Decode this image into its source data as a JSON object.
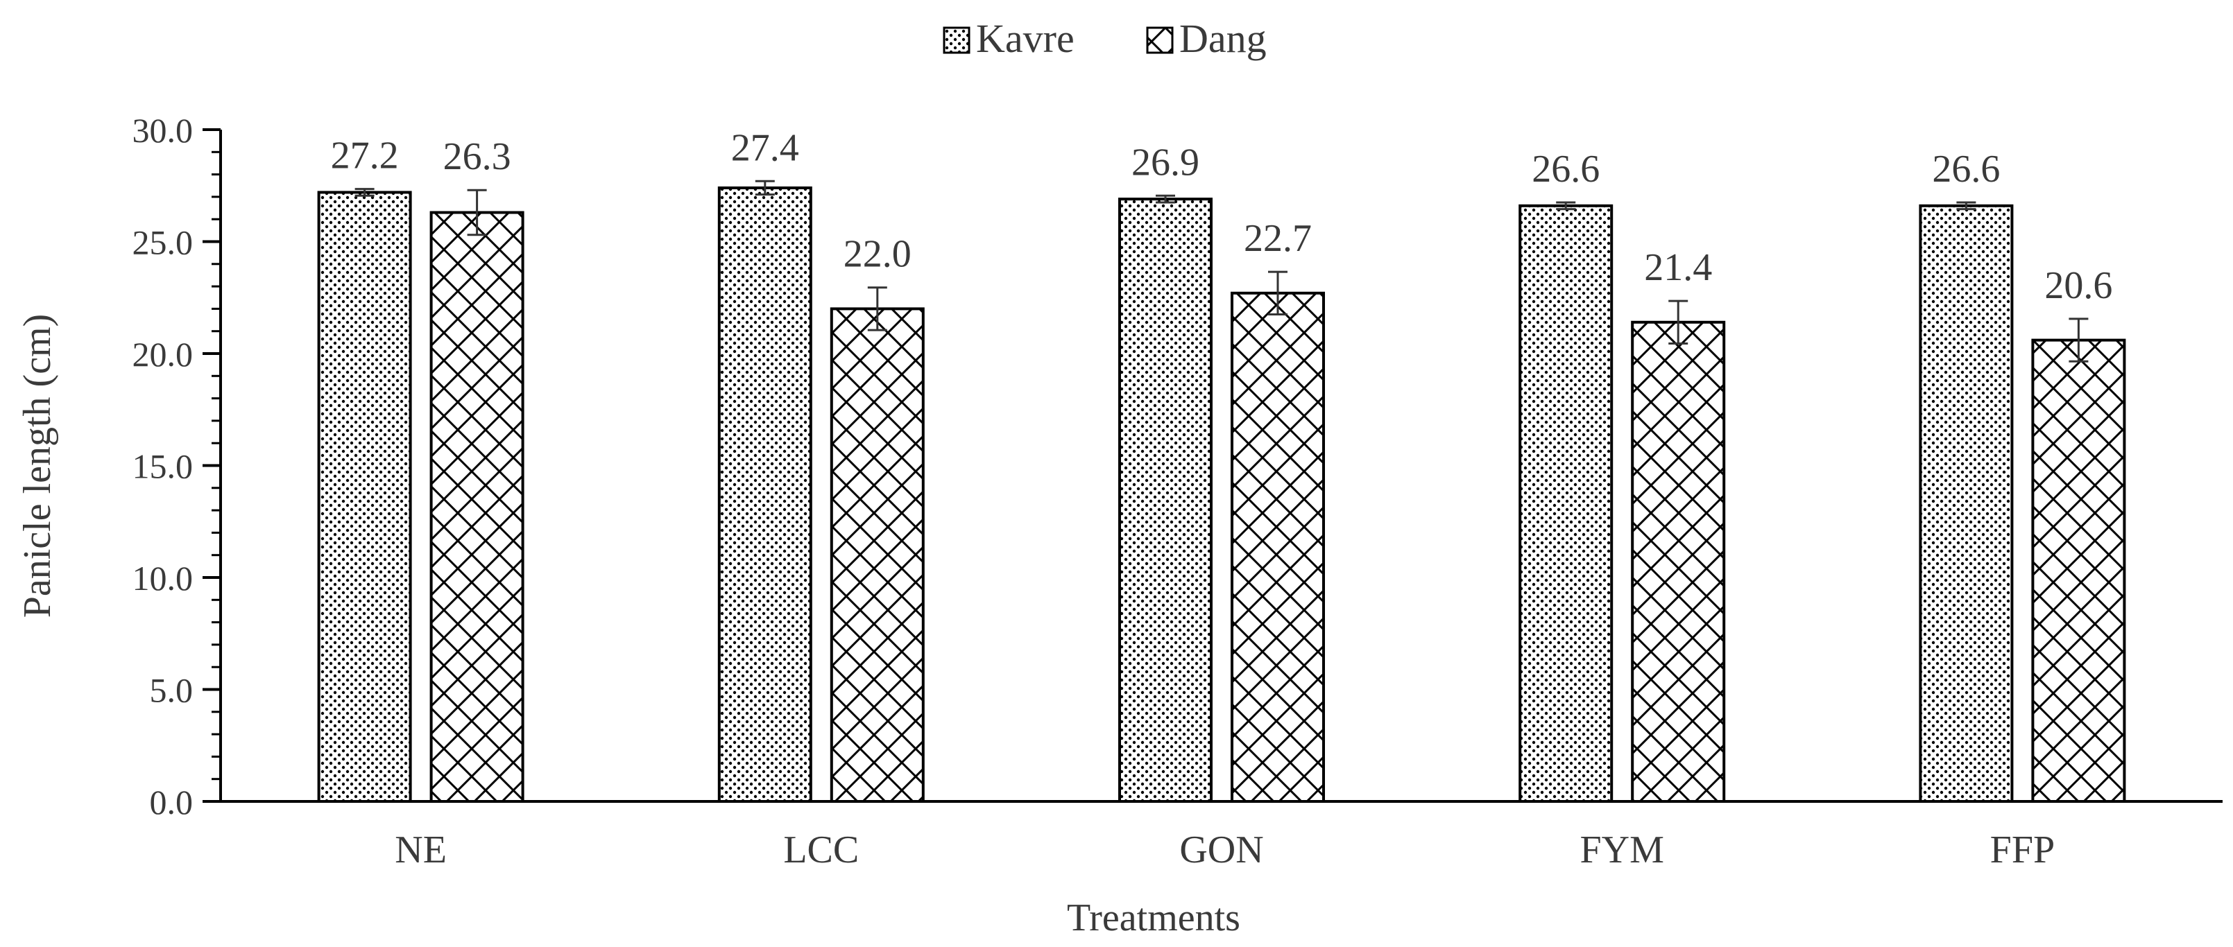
{
  "chart_data": {
    "type": "bar",
    "title": "",
    "xlabel": "Treatments",
    "ylabel": "Panicle length (cm)",
    "ylim": [
      0,
      30
    ],
    "yticks": [
      "0.0",
      "5.0",
      "10.0",
      "15.0",
      "20.0",
      "25.0",
      "30.0"
    ],
    "categories": [
      "NE",
      "LCC",
      "GON",
      "FYM",
      "FFP"
    ],
    "series": [
      {
        "name": "Kavre",
        "pattern": "dots",
        "values": [
          27.2,
          27.4,
          26.9,
          26.6,
          26.6
        ],
        "labels": [
          "27.2",
          "27.4",
          "26.9",
          "26.6",
          "26.6"
        ],
        "errors": [
          0.15,
          0.3,
          0.15,
          0.15,
          0.15
        ]
      },
      {
        "name": "Dang",
        "pattern": "crosshatch",
        "values": [
          26.3,
          22.0,
          22.7,
          21.4,
          20.6
        ],
        "labels": [
          "26.3",
          "22.0",
          "22.7",
          "21.4",
          "20.6"
        ],
        "errors": [
          1.0,
          0.95,
          0.95,
          0.95,
          0.95
        ]
      }
    ],
    "legend_position": "top-center",
    "grid": false,
    "colors": {
      "ink": "#000000",
      "text": "#3a3a3a",
      "background": "#ffffff"
    }
  }
}
